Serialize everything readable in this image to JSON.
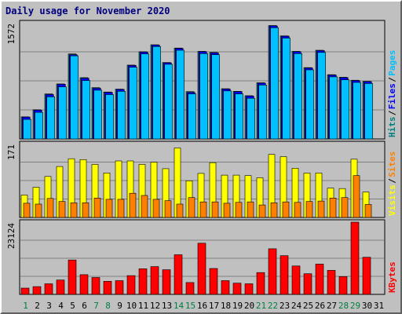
{
  "chart_data": {
    "title": "Daily usage for November 2020",
    "days": [
      "1",
      "2",
      "3",
      "4",
      "5",
      "6",
      "7",
      "8",
      "9",
      "10",
      "11",
      "12",
      "13",
      "14",
      "15",
      "16",
      "17",
      "18",
      "19",
      "20",
      "21",
      "22",
      "23",
      "24",
      "25",
      "26",
      "27",
      "28",
      "29",
      "30",
      "31"
    ],
    "weekend_days": [
      "1",
      "7",
      "8",
      "14",
      "15",
      "21",
      "22",
      "28",
      "29"
    ],
    "colors": {
      "title": "#00007f",
      "background": "#c0c0c0",
      "gridline": "#808080",
      "day_normal": "#000000",
      "day_weekend": "#008040",
      "separator": "#000000",
      "legend_sep": "#000000"
    },
    "panels": [
      {
        "type": "bar",
        "id": "hits-files-pages",
        "ymax_label": "1572",
        "ymax": 1572,
        "grid": true,
        "legend": [
          {
            "name": "Hits",
            "color": "#008080"
          },
          {
            "name": "Files",
            "color": "#0000ff"
          },
          {
            "name": "Pages",
            "color": "#00c0ff"
          }
        ],
        "series": [
          {
            "name": "Hits",
            "color": "#008080",
            "values": [
              300,
              395,
              610,
              745,
              1150,
              830,
              695,
              635,
              675,
              1000,
              1180,
              1275,
              1035,
              1230,
              640,
              1185,
              1170,
              680,
              645,
              585,
              760,
              1535,
              1395,
              1185,
              965,
              1200,
              870,
              835,
              795,
              780,
              null
            ]
          },
          {
            "name": "Files",
            "color": "#0000ff",
            "values": [
              295,
              390,
              600,
              740,
              1140,
              820,
              685,
              630,
              670,
              995,
              1175,
              1270,
              1030,
              1225,
              630,
              1180,
              1165,
              675,
              640,
              580,
              755,
              1530,
              1390,
              1180,
              960,
              1195,
              865,
              830,
              790,
              775,
              null
            ]
          },
          {
            "name": "Pages",
            "color": "#00c0ff",
            "values": [
              265,
              360,
              570,
              705,
              1125,
              790,
              660,
              600,
              645,
              970,
              1150,
              1250,
              1010,
              1200,
              610,
              1155,
              1140,
              650,
              610,
              550,
              730,
              1505,
              1365,
              1155,
              935,
              1170,
              840,
              800,
              765,
              750,
              null
            ]
          }
        ]
      },
      {
        "type": "bar",
        "id": "visits-sites",
        "ymax_label": "171",
        "ymax": 171,
        "grid": true,
        "legend": [
          {
            "name": "Visits",
            "color": "#ffff00"
          },
          {
            "name": "Sites",
            "color": "#ff8000"
          }
        ],
        "series": [
          {
            "name": "Visits",
            "color": "#ffff00",
            "values": [
              52,
              70,
              95,
              118,
              136,
              134,
              123,
              103,
              131,
              131,
              123,
              128,
              113,
              161,
              85,
              102,
              127,
              98,
              98,
              97,
              92,
              146,
              141,
              114,
              103,
              103,
              68,
              67,
              135,
              59,
              null
            ]
          },
          {
            "name": "Sites",
            "color": "#ff8000",
            "values": [
              33,
              31,
              44,
              37,
              34,
              34,
              45,
              42,
              42,
              56,
              51,
              42,
              39,
              31,
              46,
              36,
              36,
              33,
              35,
              36,
              29,
              34,
              36,
              35,
              37,
              38,
              45,
              46,
              97,
              30,
              null
            ]
          }
        ]
      },
      {
        "type": "bar",
        "id": "kbytes",
        "ymax_label": "23124",
        "ymax": 23124,
        "grid": true,
        "legend": [
          {
            "name": "KBytes",
            "color": "#ff0000"
          }
        ],
        "series": [
          {
            "name": "KBytes",
            "color": "#ff0000",
            "values": [
              2000,
              2500,
              3400,
              4600,
              11000,
              6300,
              5400,
              4200,
              4400,
              6000,
              8200,
              8900,
              7900,
              12700,
              3800,
              16400,
              8300,
              4400,
              3600,
              3400,
              7000,
              14600,
              12400,
              9100,
              6600,
              9700,
              7700,
              5700,
              23124,
              11900,
              null
            ]
          }
        ]
      }
    ]
  }
}
